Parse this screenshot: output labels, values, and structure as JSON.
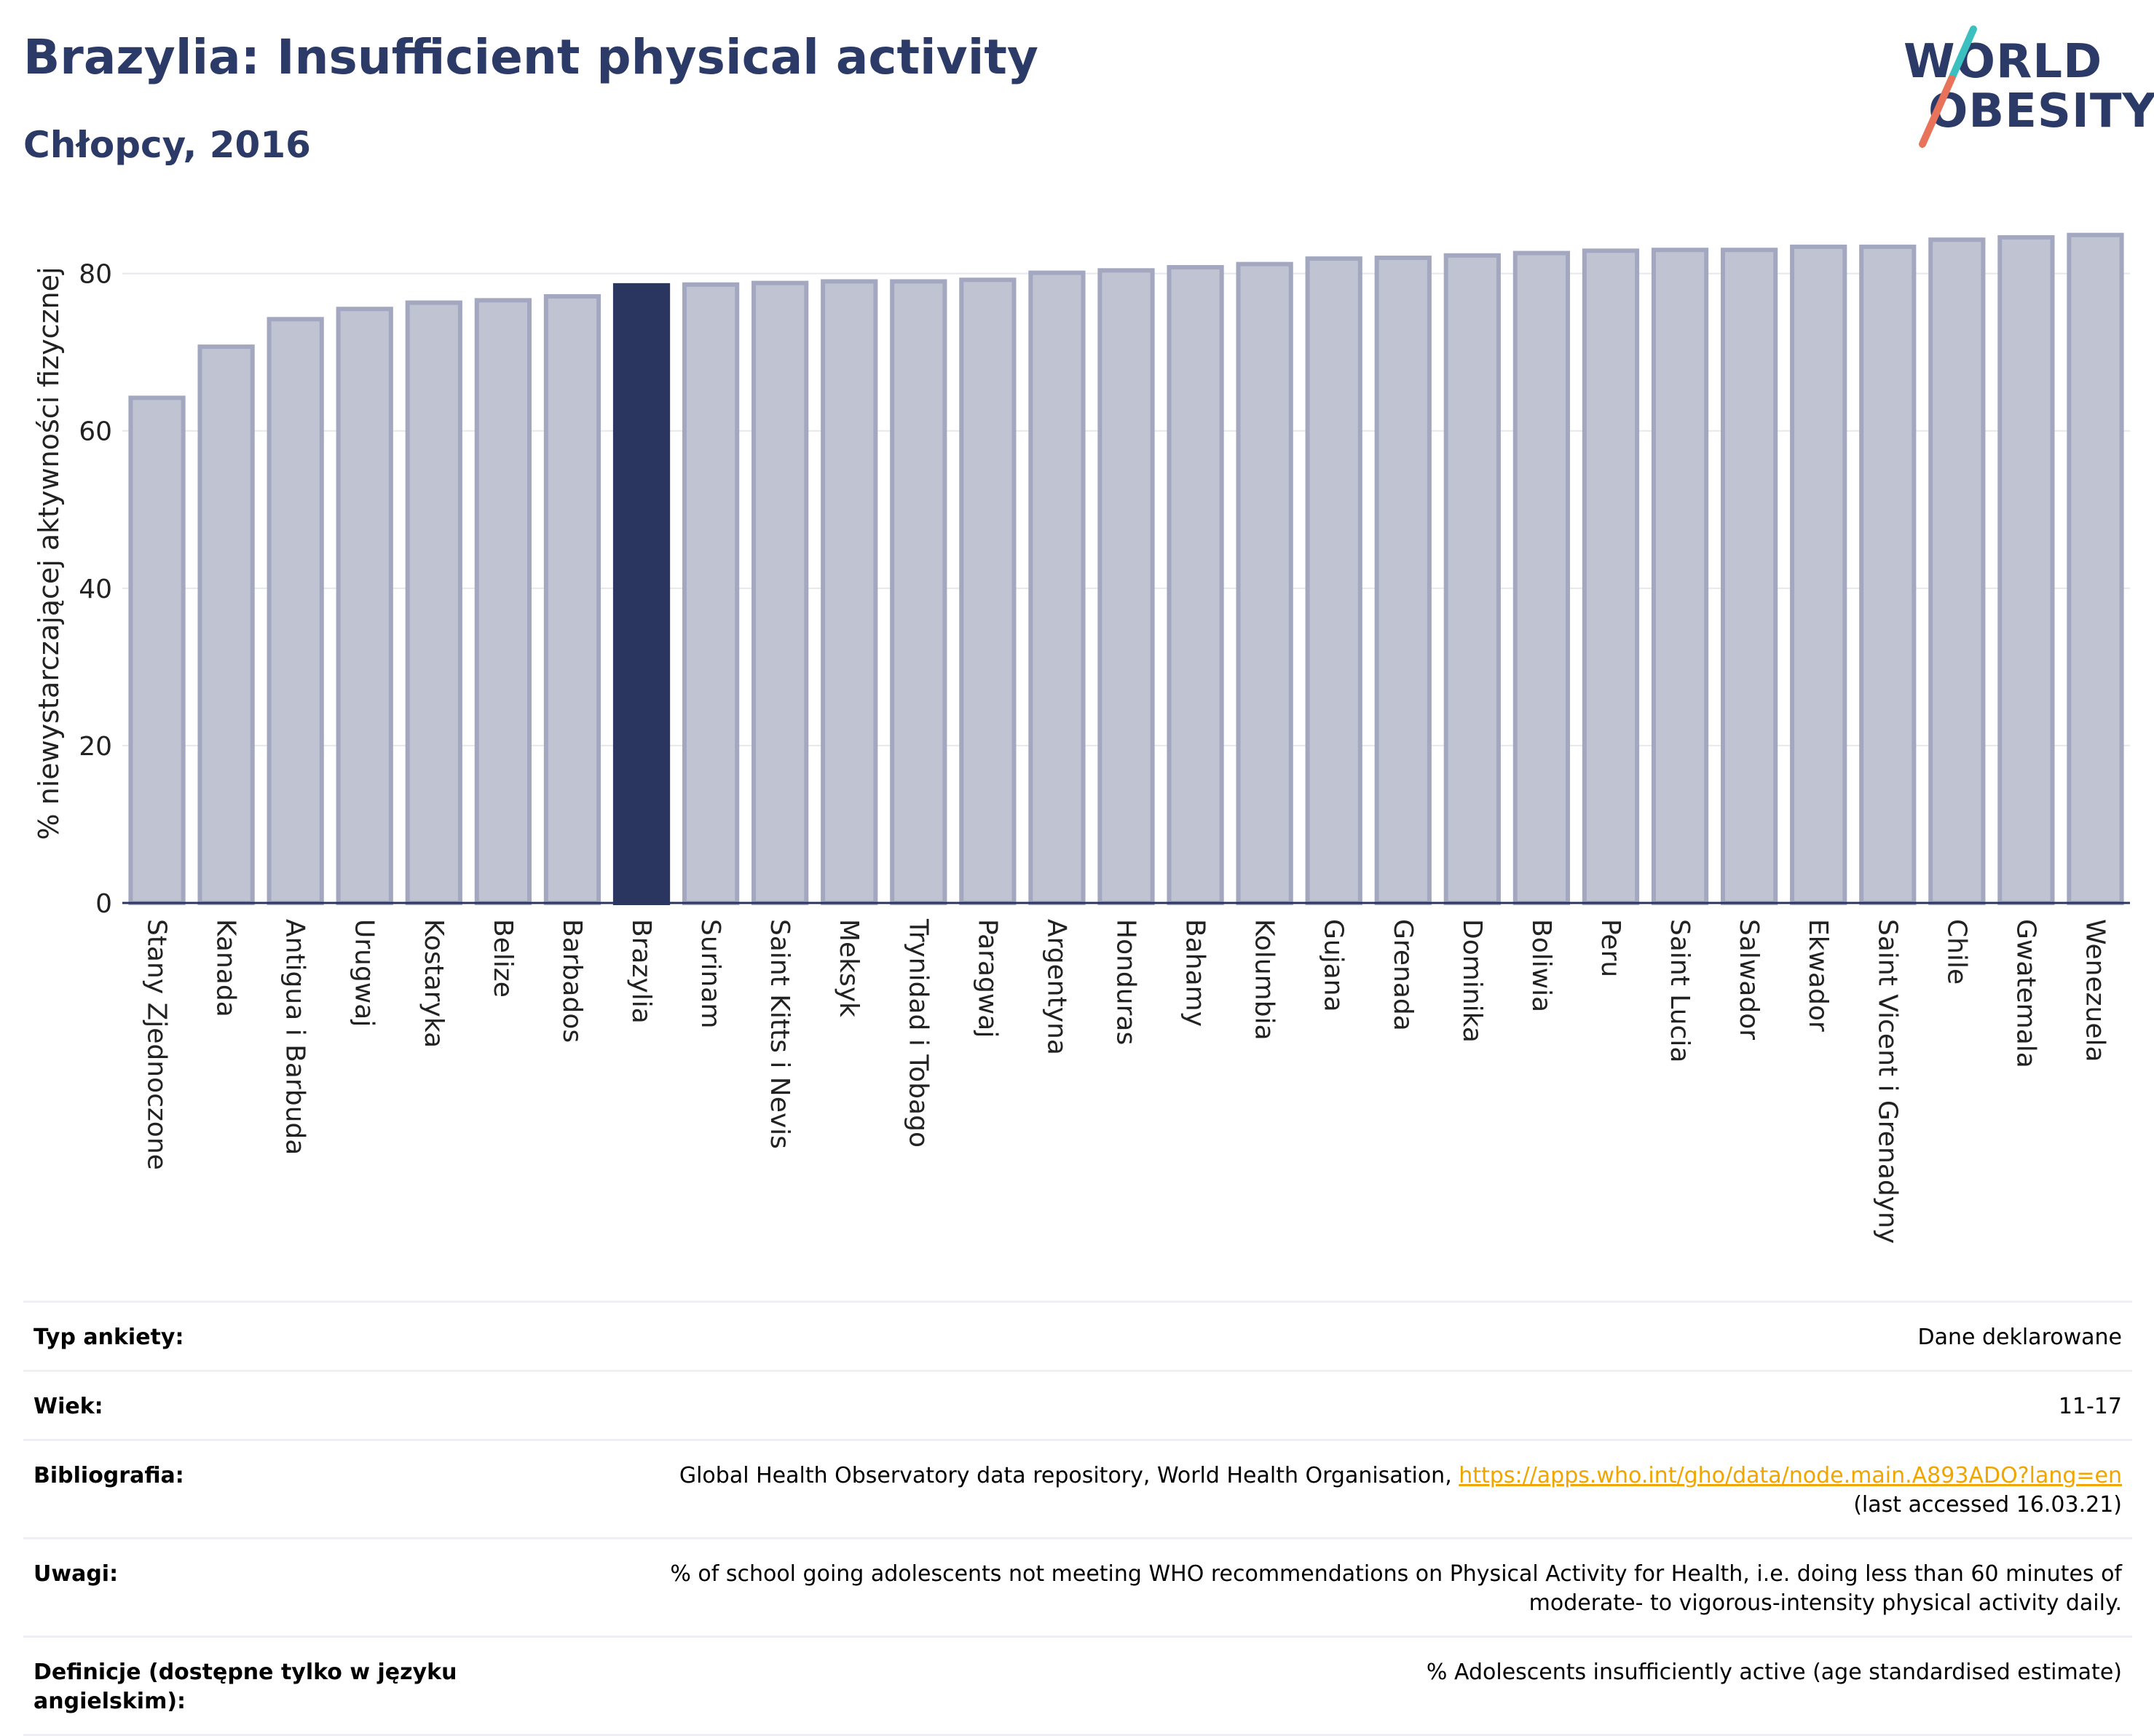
{
  "header": {
    "title": "Brazylia: Insufficient physical activity",
    "subtitle": "Chłopcy, 2016"
  },
  "logo": {
    "line1": "WORLD",
    "line2": "OBESITY"
  },
  "colors": {
    "highlight": "#2b3660",
    "bar_fill": "#c0c3d1",
    "bar_stroke": "#a3a8c0",
    "title": "#2b3a67",
    "logo_teal": "#3bbfbf",
    "logo_coral": "#e8735a"
  },
  "chart_data": {
    "type": "bar",
    "ylabel": "% niewystarczającej aktywności fizycznej",
    "ylim": [
      0,
      87
    ],
    "yticks": [
      0,
      20,
      40,
      60,
      80
    ],
    "grid": true,
    "highlight": "Brazylia",
    "categories": [
      "Stany Zjednoczone",
      "Kanada",
      "Antigua i Barbuda",
      "Urugwaj",
      "Kostaryka",
      "Belize",
      "Barbados",
      "Brazylia",
      "Surinam",
      "Saint Kitts i Nevis",
      "Meksyk",
      "Trynidad i Tobago",
      "Paragwaj",
      "Argentyna",
      "Honduras",
      "Bahamy",
      "Kolumbia",
      "Gujana",
      "Grenada",
      "Dominika",
      "Boliwia",
      "Peru",
      "Saint Lucia",
      "Salwador",
      "Ekwador",
      "Saint Vicent i Grenadyny",
      "Chile",
      "Gwatemala",
      "Wenezuela"
    ],
    "values": [
      64.2,
      70.7,
      74.2,
      75.5,
      76.3,
      76.6,
      77.1,
      78.5,
      78.6,
      78.8,
      79.0,
      79.0,
      79.2,
      80.1,
      80.4,
      80.8,
      81.2,
      81.9,
      82.0,
      82.3,
      82.6,
      82.9,
      83.0,
      83.0,
      83.4,
      83.4,
      84.3,
      84.6,
      84.9
    ]
  },
  "info": {
    "survey_label": "Typ ankiety:",
    "survey_value": "Dane deklarowane",
    "age_label": "Wiek:",
    "age_value": "11-17",
    "bib_label": "Bibliografia:",
    "bib_text": "Global Health Observatory data repository, World Health Organisation, ",
    "bib_link": "https://apps.who.int/gho/data/node.main.A893ADO?lang=en",
    "bib_accessed": "(last accessed 16.03.21)",
    "notes_label": "Uwagi:",
    "notes_line1": "% of school going adolescents not meeting WHO recommendations on Physical Activity for Health, i.e. doing less than 60 minutes of",
    "notes_line2": "moderate- to vigorous-intensity physical activity daily.",
    "def_label": "Definicje (dostępne tylko w języku angielskim):",
    "def_value": "% Adolescents insufficiently active (age standardised estimate)"
  }
}
